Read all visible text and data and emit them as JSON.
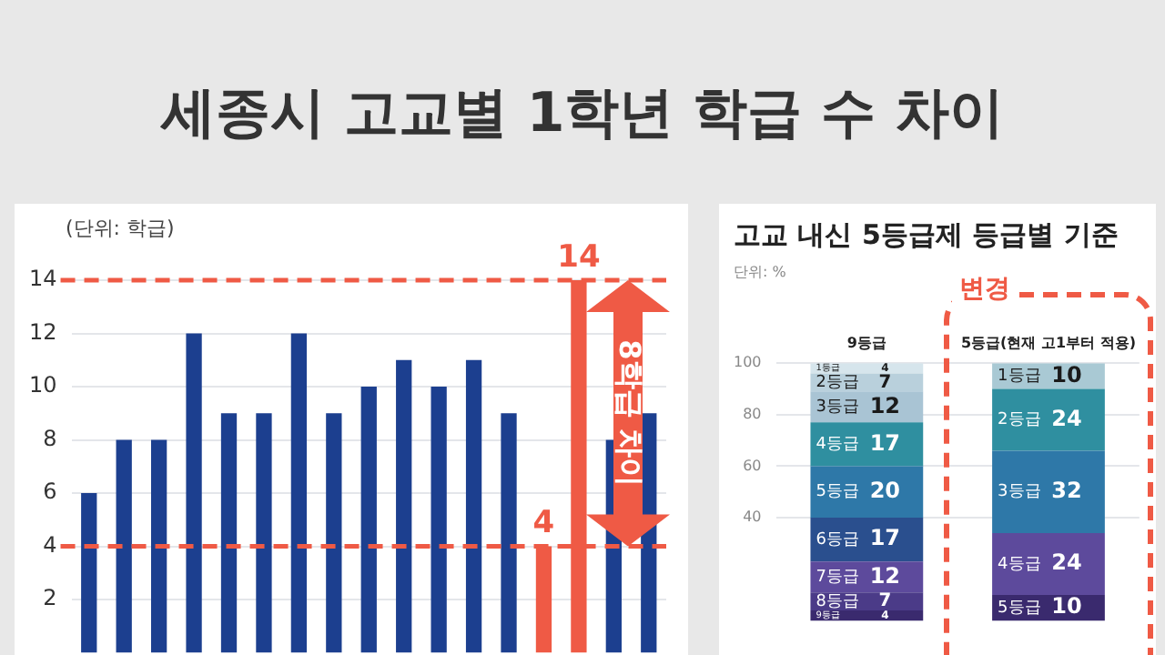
{
  "chart_data": [
    {
      "type": "bar",
      "title": "세종시 고교별 1학년 학급 수 차이",
      "categories": [
        null,
        null,
        null,
        null,
        null,
        null,
        null,
        null,
        null,
        null,
        null,
        null,
        null,
        null,
        null,
        null,
        null
      ],
      "values": [
        6,
        8,
        8,
        12,
        9,
        9,
        12,
        9,
        10,
        11,
        10,
        11,
        9,
        4,
        14,
        8,
        9
      ],
      "colors": [
        "#1c3f8f",
        "#1c3f8f",
        "#1c3f8f",
        "#1c3f8f",
        "#1c3f8f",
        "#1c3f8f",
        "#1c3f8f",
        "#1c3f8f",
        "#1c3f8f",
        "#1c3f8f",
        "#1c3f8f",
        "#1c3f8f",
        "#1c3f8f",
        "#ef5a45",
        "#ef5a45",
        "#1c3f8f",
        "#1c3f8f"
      ],
      "value_labels": [
        null,
        null,
        null,
        null,
        null,
        null,
        null,
        null,
        null,
        null,
        null,
        null,
        null,
        "4",
        "14",
        null,
        null
      ],
      "ylim": [
        0,
        14
      ],
      "yticks": [
        2,
        4,
        6,
        8,
        10,
        12,
        14
      ],
      "grid": "y",
      "legend": false,
      "tick_labels": "y",
      "ref_lines": [
        {
          "axis": "y",
          "value": 14,
          "color": "#ef5a45",
          "line_style": "dashed"
        },
        {
          "axis": "y",
          "value": 4,
          "color": "#ef5a45",
          "line_style": "dashed"
        }
      ],
      "annotations": [
        "(단위: 학급)",
        "8학급 차이"
      ]
    },
    {
      "type": "bar",
      "title": "고교 내신 5등급제 등급별 기준",
      "stacked": true,
      "categories": [
        "9등급",
        "5등급(현재 고1부터 적용)"
      ],
      "series": [
        {
          "values": [
            4,
            10
          ],
          "colors": [
            "#3a2a6e",
            "#3a2a6e"
          ]
        },
        {
          "values": [
            7,
            24
          ],
          "colors": [
            "#4b3b88",
            "#5d4a9c"
          ]
        },
        {
          "values": [
            12,
            32
          ],
          "colors": [
            "#5d4a9c",
            "#2e78a8"
          ]
        },
        {
          "values": [
            17,
            24
          ],
          "colors": [
            "#2a4f8e",
            "#2f8fa0"
          ]
        },
        {
          "values": [
            20,
            10
          ],
          "colors": [
            "#2e78a8",
            "#a9c9d4"
          ]
        },
        {
          "values": [
            17,
            null
          ],
          "colors": [
            "#2f8fa0",
            null
          ]
        },
        {
          "values": [
            12,
            null
          ],
          "colors": [
            "#a9c4d4",
            null
          ]
        },
        {
          "values": [
            7,
            null
          ],
          "colors": [
            "#b9d0dc",
            null
          ]
        },
        {
          "values": [
            4,
            null
          ],
          "colors": [
            "#d6e5ec",
            null
          ]
        }
      ],
      "data_labels": true,
      "ylim": [
        0,
        100
      ],
      "yticks": [
        40,
        60,
        80,
        100
      ],
      "grid": "y",
      "legend": false,
      "annotations": [
        "단위: %",
        "변경",
        "9등급",
        "8등급",
        "7등급",
        "6등급",
        "5등급",
        "4등급",
        "3등급",
        "2등급",
        "1등급",
        "5등급",
        "4등급",
        "3등급",
        "2등급",
        "1등급"
      ]
    }
  ]
}
